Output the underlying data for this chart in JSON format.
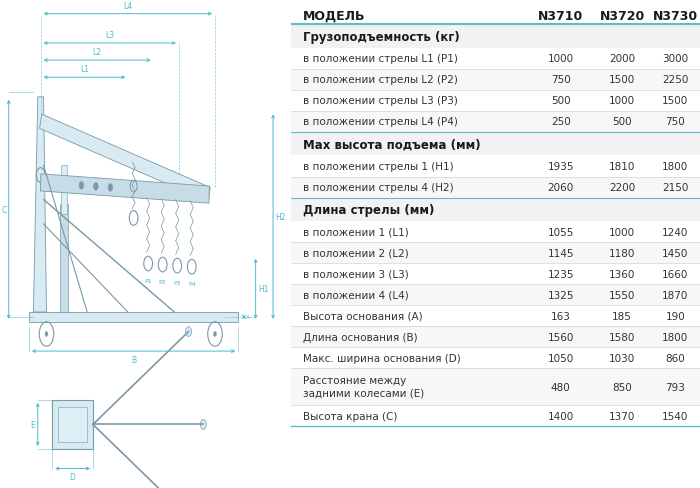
{
  "bg_color": "#ffffff",
  "header_row": [
    "МОДЕЛЬ",
    "N3710",
    "N3720",
    "N3730"
  ],
  "sections": [
    {
      "title": "Грузоподъемность (кг)",
      "rows": [
        [
          "в положении стрелы L1 (P1)",
          "1000",
          "2000",
          "3000"
        ],
        [
          "в положении стрелы L2 (P2)",
          "750",
          "1500",
          "2250"
        ],
        [
          "в положении стрелы L3 (P3)",
          "500",
          "1000",
          "1500"
        ],
        [
          "в положении стрелы L4 (P4)",
          "250",
          "500",
          "750"
        ]
      ]
    },
    {
      "title": "Мах высота подъема (мм)",
      "rows": [
        [
          "в положении стрелы 1 (Н1)",
          "1935",
          "1810",
          "1800"
        ],
        [
          "в положении стрелы 4 (Н2)",
          "2060",
          "2200",
          "2150"
        ]
      ]
    },
    {
      "title": "Длина стрелы (мм)",
      "rows": [
        [
          "в положении 1 (L1)",
          "1055",
          "1000",
          "1240"
        ],
        [
          "в положении 2 (L2)",
          "1145",
          "1180",
          "1450"
        ],
        [
          "в положении 3 (L3)",
          "1235",
          "1360",
          "1660"
        ],
        [
          "в положении 4 (L4)",
          "1325",
          "1550",
          "1870"
        ],
        [
          "Высота основания (А)",
          "163",
          "185",
          "190"
        ],
        [
          "Длина основания (В)",
          "1560",
          "1580",
          "1800"
        ],
        [
          "Макс. ширина основания (D)",
          "1050",
          "1030",
          "860"
        ],
        [
          "Расстояние между\nзадними колесами (Е)",
          "480",
          "850",
          "793"
        ],
        [
          "Высота крана (С)",
          "1400",
          "1370",
          "1540"
        ]
      ]
    }
  ],
  "steel": "#b0c8d8",
  "steel_dark": "#7899a8",
  "steel_light": "#d8eaf2",
  "dim_color": "#4bbccc",
  "line_color": "#a8dde8",
  "bg_color2": "#e8f4f8",
  "font_size_header": 9,
  "font_size_section": 8.5,
  "font_size_row": 7.5
}
